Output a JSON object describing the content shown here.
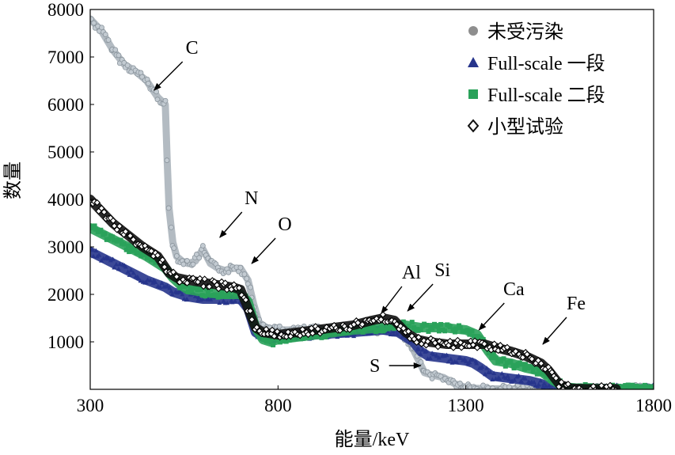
{
  "chart_data": {
    "type": "scatter",
    "title": "",
    "xlabel": "能量/keV",
    "ylabel": "数量",
    "xlim": [
      300,
      1800
    ],
    "ylim": [
      0,
      8000
    ],
    "xticks": [
      "300",
      "800",
      "1300",
      "1800"
    ],
    "yticks": [
      "1000",
      "2000",
      "3000",
      "4000",
      "5000",
      "6000",
      "7000",
      "8000"
    ],
    "grid": false,
    "legend_position": "top-right",
    "legend": [
      {
        "label": "未受污染",
        "marker": "circle",
        "color": "#8e8e8e"
      },
      {
        "label": "Full-scale 一段",
        "marker": "triangle",
        "color": "#27358c"
      },
      {
        "label": "Full-scale 二段",
        "marker": "square",
        "color": "#2aa25a"
      },
      {
        "label": "小型试验",
        "marker": "diamond-open",
        "color": "#111111"
      }
    ],
    "series": [
      {
        "name": "未受污染",
        "color": "#9aa4ad",
        "x": [
          300,
          330,
          360,
          390,
          420,
          450,
          480,
          500,
          505,
          510,
          520,
          530,
          545,
          560,
          580,
          600,
          620,
          640,
          660,
          680,
          700,
          720,
          735,
          750,
          770,
          800,
          850,
          900,
          950,
          1000,
          1050,
          1080,
          1120,
          1150,
          1175,
          1190,
          1210,
          1240,
          1270,
          1300,
          1330,
          1360,
          1400,
          1450,
          1500,
          1600,
          1700,
          1800
        ],
        "y": [
          7800,
          7550,
          7150,
          6850,
          6700,
          6500,
          6150,
          6000,
          4800,
          3800,
          3100,
          2800,
          2700,
          2650,
          2700,
          2950,
          2650,
          2550,
          2500,
          2550,
          2550,
          2300,
          1800,
          1400,
          1300,
          1250,
          1250,
          1250,
          1250,
          1250,
          1250,
          1250,
          1200,
          1000,
          600,
          350,
          300,
          250,
          120,
          40,
          20,
          10,
          10,
          10,
          10,
          10,
          10,
          10
        ]
      },
      {
        "name": "Full-scale 一段",
        "color": "#27358c",
        "x": [
          300,
          350,
          400,
          450,
          500,
          520,
          540,
          560,
          600,
          650,
          700,
          720,
          740,
          760,
          780,
          800,
          900,
          1000,
          1080,
          1120,
          1160,
          1180,
          1200,
          1250,
          1300,
          1320,
          1340,
          1370,
          1400,
          1430,
          1470,
          1500,
          1530,
          1560,
          1600,
          1700,
          1800
        ],
        "y": [
          2900,
          2700,
          2500,
          2300,
          2150,
          2050,
          2000,
          1950,
          1900,
          1900,
          1900,
          1700,
          1200,
          1100,
          1050,
          1100,
          1150,
          1200,
          1250,
          1200,
          1000,
          800,
          700,
          650,
          600,
          550,
          450,
          280,
          250,
          220,
          180,
          120,
          40,
          20,
          10,
          10,
          10
        ]
      },
      {
        "name": "Full-scale 二段",
        "color": "#2aa25a",
        "x": [
          300,
          350,
          400,
          450,
          500,
          520,
          540,
          560,
          600,
          650,
          700,
          720,
          740,
          760,
          780,
          800,
          900,
          1000,
          1080,
          1100,
          1140,
          1180,
          1240,
          1300,
          1330,
          1360,
          1380,
          1420,
          1460,
          1500,
          1530,
          1560,
          1600,
          1700,
          1800
        ],
        "y": [
          3400,
          3200,
          3000,
          2800,
          2550,
          2350,
          2200,
          2100,
          2050,
          2000,
          2000,
          1850,
          1300,
          1050,
          1000,
          1050,
          1150,
          1250,
          1300,
          1350,
          1350,
          1300,
          1300,
          1250,
          1150,
          800,
          600,
          550,
          450,
          380,
          200,
          50,
          20,
          10,
          10
        ]
      },
      {
        "name": "小型试验",
        "color": "#111111",
        "x": [
          300,
          330,
          360,
          400,
          440,
          480,
          510,
          530,
          560,
          600,
          640,
          680,
          700,
          720,
          740,
          760,
          800,
          850,
          900,
          950,
          1000,
          1050,
          1080,
          1110,
          1140,
          1170,
          1200,
          1250,
          1300,
          1350,
          1380,
          1420,
          1460,
          1500,
          1520,
          1550,
          1580,
          1620,
          1700
        ],
        "y": [
          4000,
          3750,
          3500,
          3250,
          3000,
          2800,
          2450,
          2350,
          2300,
          2250,
          2200,
          2150,
          2100,
          1700,
          1300,
          1200,
          1150,
          1200,
          1250,
          1300,
          1350,
          1450,
          1500,
          1450,
          1200,
          1050,
          1000,
          950,
          950,
          950,
          880,
          800,
          700,
          550,
          400,
          100,
          20,
          10,
          10
        ]
      }
    ],
    "annotations": [
      {
        "text": "C",
        "x": 470,
        "y": 6300
      },
      {
        "text": "N",
        "x": 645,
        "y": 3200
      },
      {
        "text": "O",
        "x": 730,
        "y": 2650
      },
      {
        "text": "Al",
        "x": 1075,
        "y": 1600
      },
      {
        "text": "Si",
        "x": 1145,
        "y": 1650
      },
      {
        "text": "Ca",
        "x": 1335,
        "y": 1250
      },
      {
        "text": "Fe",
        "x": 1505,
        "y": 950
      },
      {
        "text": "S",
        "x": 1180,
        "y": 500
      }
    ]
  }
}
